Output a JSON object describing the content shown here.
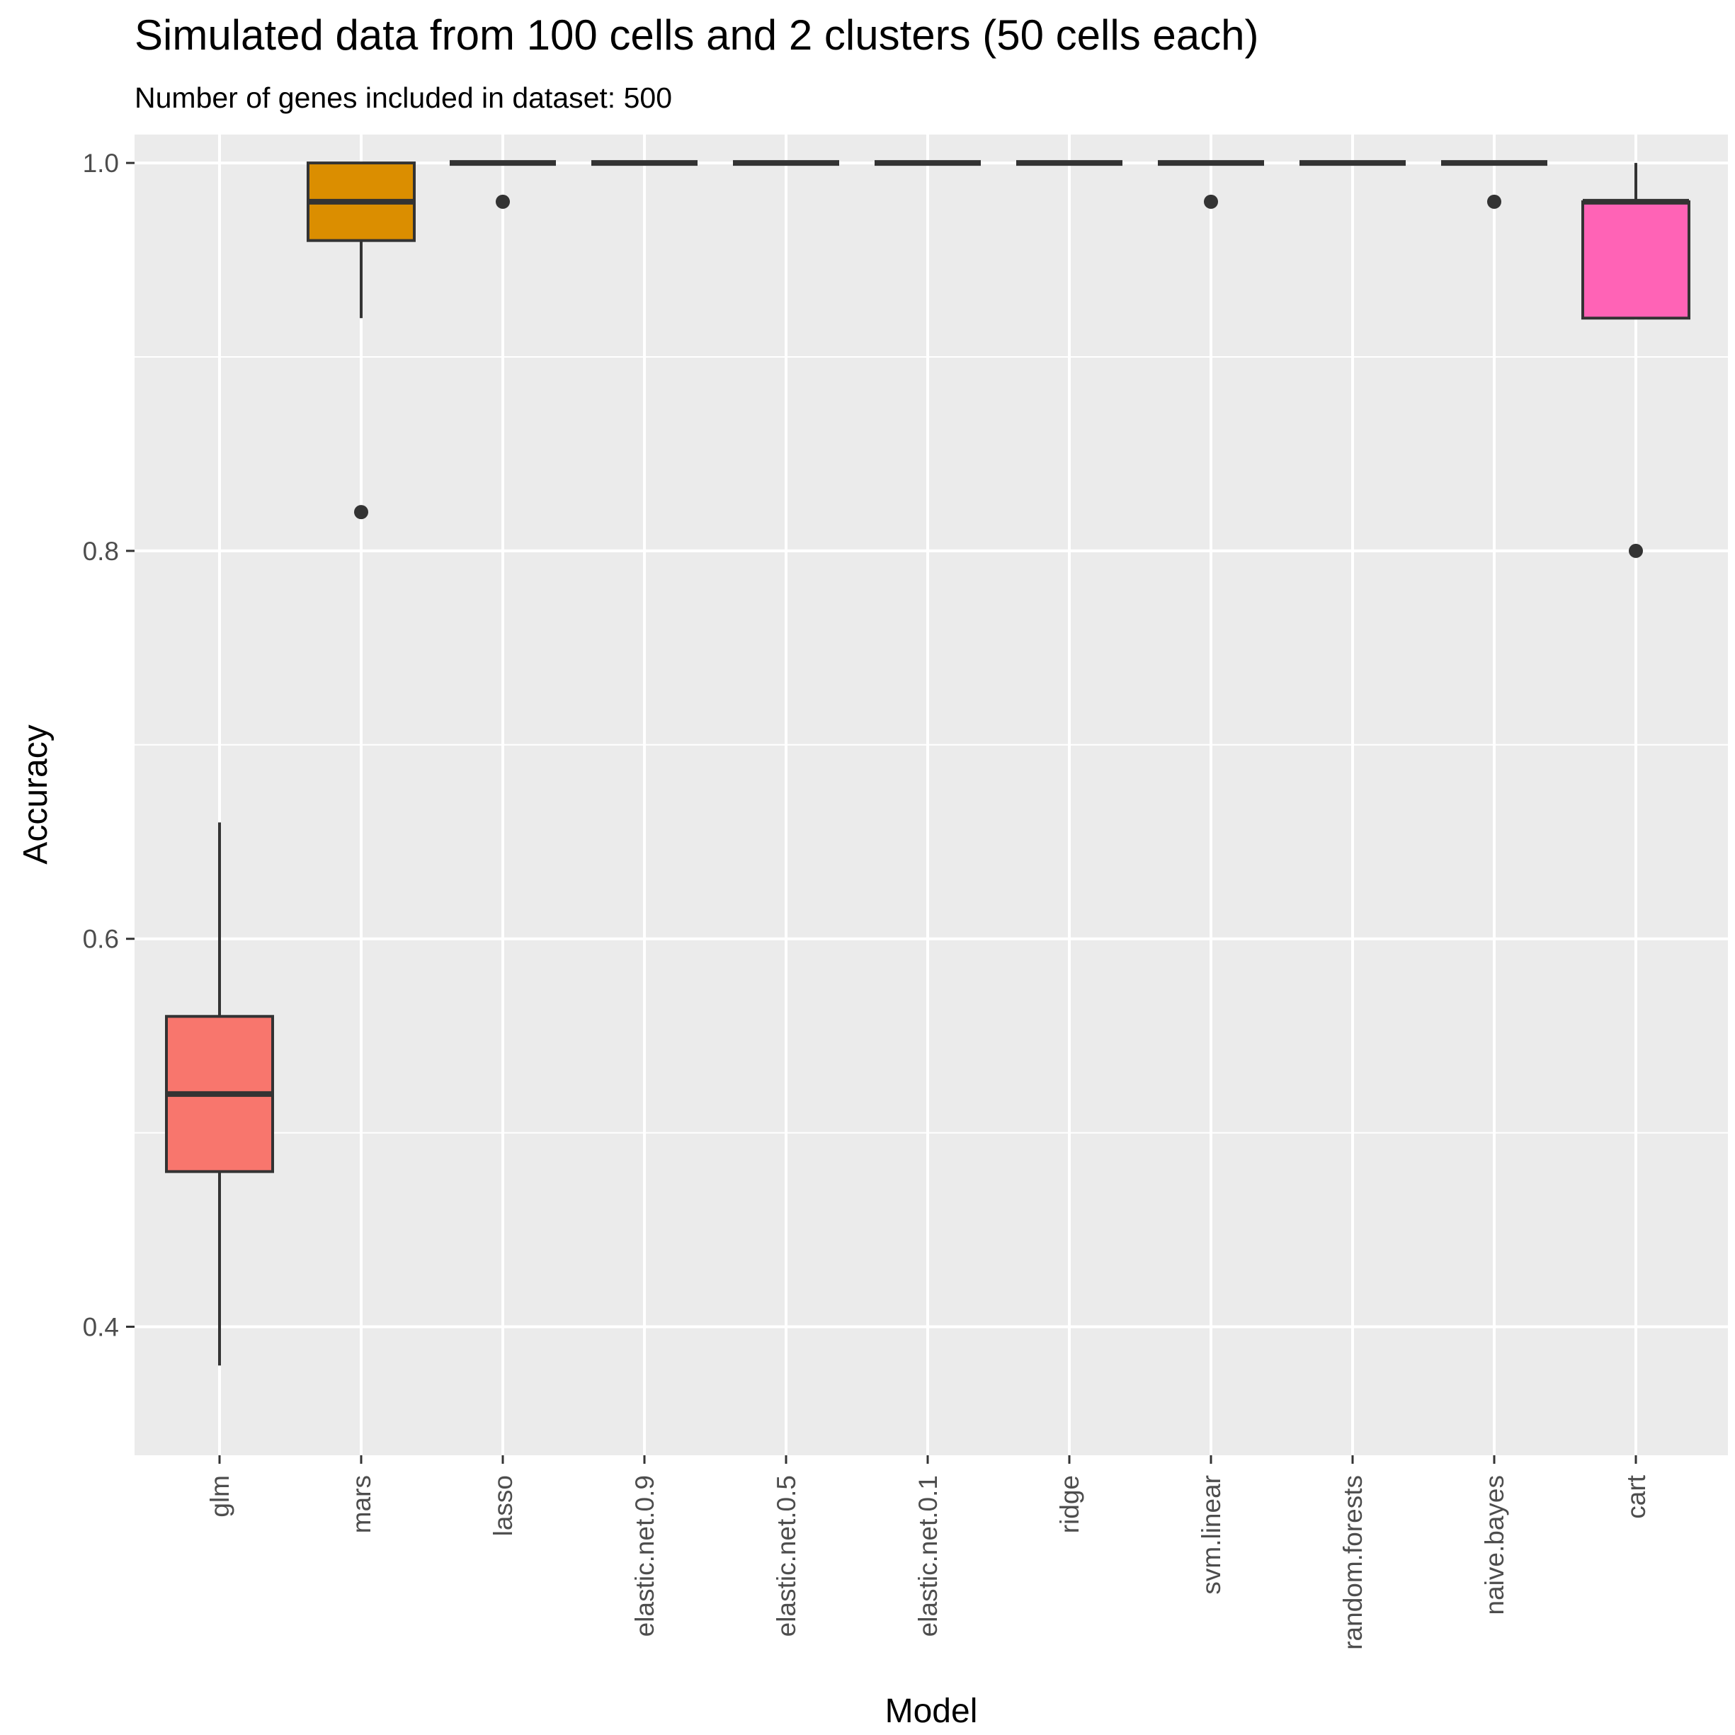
{
  "chart_data": {
    "type": "boxplot",
    "title": "Simulated data from 100 cells and 2 clusters (50 cells each)",
    "subtitle": "Number of genes included in dataset: 500",
    "xlabel": "Model",
    "ylabel": "Accuracy",
    "ylim": [
      0.35,
      1.03
    ],
    "yticks": [
      0.4,
      0.6,
      0.8,
      1.0
    ],
    "ytick_labels": [
      "0.4",
      "0.6",
      "0.8",
      "1.0"
    ],
    "grid": true,
    "legend": "none",
    "categories": [
      "glm",
      "mars",
      "lasso",
      "elastic.net.0.9",
      "elastic.net.0.5",
      "elastic.net.0.1",
      "ridge",
      "svm.linear",
      "random.forests",
      "naive.bayes",
      "cart"
    ],
    "boxes": [
      {
        "category": "glm",
        "min": 0.38,
        "q1": 0.48,
        "median": 0.52,
        "q3": 0.56,
        "max": 0.66,
        "outliers": [],
        "fill": "#F8766D"
      },
      {
        "category": "mars",
        "min": 0.92,
        "q1": 0.96,
        "median": 0.98,
        "q3": 1.0,
        "max": 1.0,
        "outliers": [
          0.82
        ],
        "fill": "#DB8E00"
      },
      {
        "category": "lasso",
        "min": 1.0,
        "q1": 1.0,
        "median": 1.0,
        "q3": 1.0,
        "max": 1.0,
        "outliers": [
          0.98
        ],
        "fill": "#AEA200"
      },
      {
        "category": "elastic.net.0.9",
        "min": 1.0,
        "q1": 1.0,
        "median": 1.0,
        "q3": 1.0,
        "max": 1.0,
        "outliers": [],
        "fill": "#64B200"
      },
      {
        "category": "elastic.net.0.5",
        "min": 1.0,
        "q1": 1.0,
        "median": 1.0,
        "q3": 1.0,
        "max": 1.0,
        "outliers": [],
        "fill": "#00BD5C"
      },
      {
        "category": "elastic.net.0.1",
        "min": 1.0,
        "q1": 1.0,
        "median": 1.0,
        "q3": 1.0,
        "max": 1.0,
        "outliers": [],
        "fill": "#00C1A7"
      },
      {
        "category": "ridge",
        "min": 1.0,
        "q1": 1.0,
        "median": 1.0,
        "q3": 1.0,
        "max": 1.0,
        "outliers": [],
        "fill": "#00BADE"
      },
      {
        "category": "svm.linear",
        "min": 1.0,
        "q1": 1.0,
        "median": 1.0,
        "q3": 1.0,
        "max": 1.0,
        "outliers": [
          0.98
        ],
        "fill": "#00A6FF"
      },
      {
        "category": "random.forests",
        "min": 1.0,
        "q1": 1.0,
        "median": 1.0,
        "q3": 1.0,
        "max": 1.0,
        "outliers": [],
        "fill": "#B385FF"
      },
      {
        "category": "naive.bayes",
        "min": 1.0,
        "q1": 1.0,
        "median": 1.0,
        "q3": 1.0,
        "max": 1.0,
        "outliers": [
          0.98
        ],
        "fill": "#EF67EB"
      },
      {
        "category": "cart",
        "min": 0.92,
        "q1": 0.92,
        "median": 0.98,
        "q3": 0.98,
        "max": 1.0,
        "outliers": [
          0.8
        ],
        "fill": "#FF63B6"
      }
    ],
    "colors": {
      "panel_background": "#EBEBEB",
      "grid_major": "#FFFFFF",
      "box_outline": "#333333",
      "tick_label": "#4D4D4D"
    }
  }
}
